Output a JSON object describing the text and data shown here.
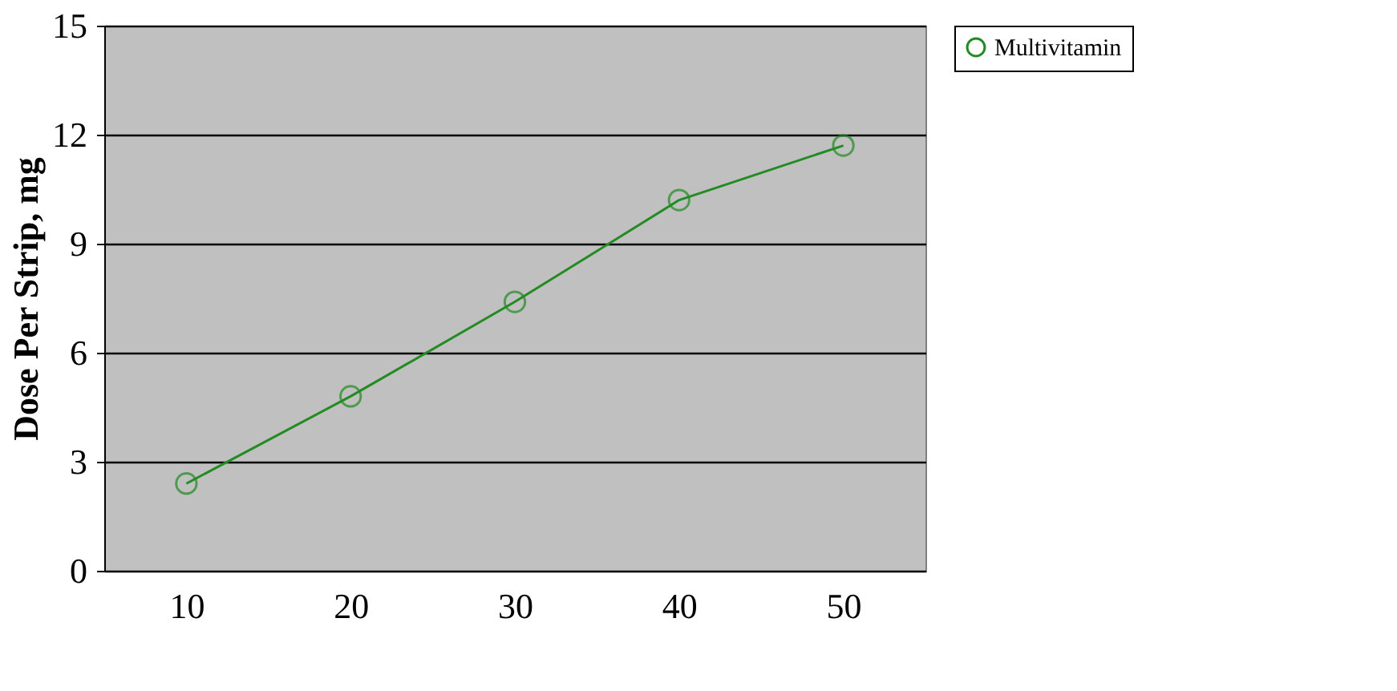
{
  "chart_data": {
    "type": "line",
    "ylabel": "Dose Per Strip, mg",
    "categories": [
      "10",
      "20",
      "30",
      "40",
      "50"
    ],
    "series": [
      {
        "name": "Multivitamin",
        "color": "#228b22",
        "values": [
          2.4,
          4.8,
          7.4,
          10.2,
          11.7
        ]
      }
    ],
    "ylim": [
      0,
      15
    ],
    "yticks": [
      0,
      3,
      6,
      9,
      12,
      15
    ],
    "grid": "y",
    "legend": "right",
    "marker": "circle",
    "line_style": "solid"
  }
}
